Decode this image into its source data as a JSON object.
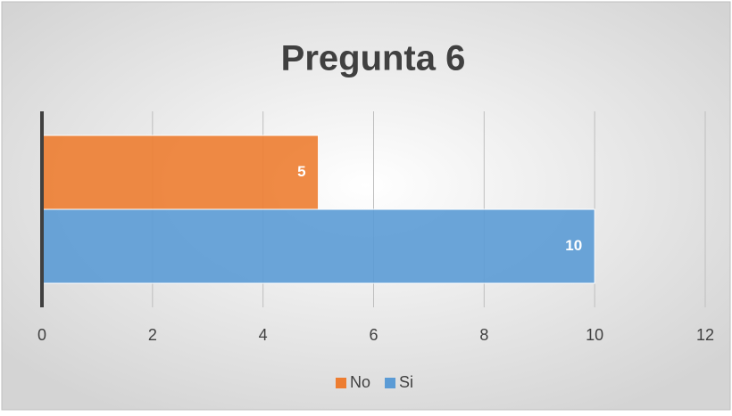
{
  "chart_data": {
    "type": "bar",
    "orientation": "horizontal",
    "title": "Pregunta 6",
    "series": [
      {
        "name": "No",
        "color": "#ed7d31",
        "values": [
          5
        ]
      },
      {
        "name": "Si",
        "color": "#5b9bd5",
        "values": [
          10
        ]
      }
    ],
    "xlim": [
      0,
      12
    ],
    "xticks": [
      0,
      2,
      4,
      6,
      8,
      10,
      12
    ],
    "grid": true,
    "legend": "bottom"
  }
}
